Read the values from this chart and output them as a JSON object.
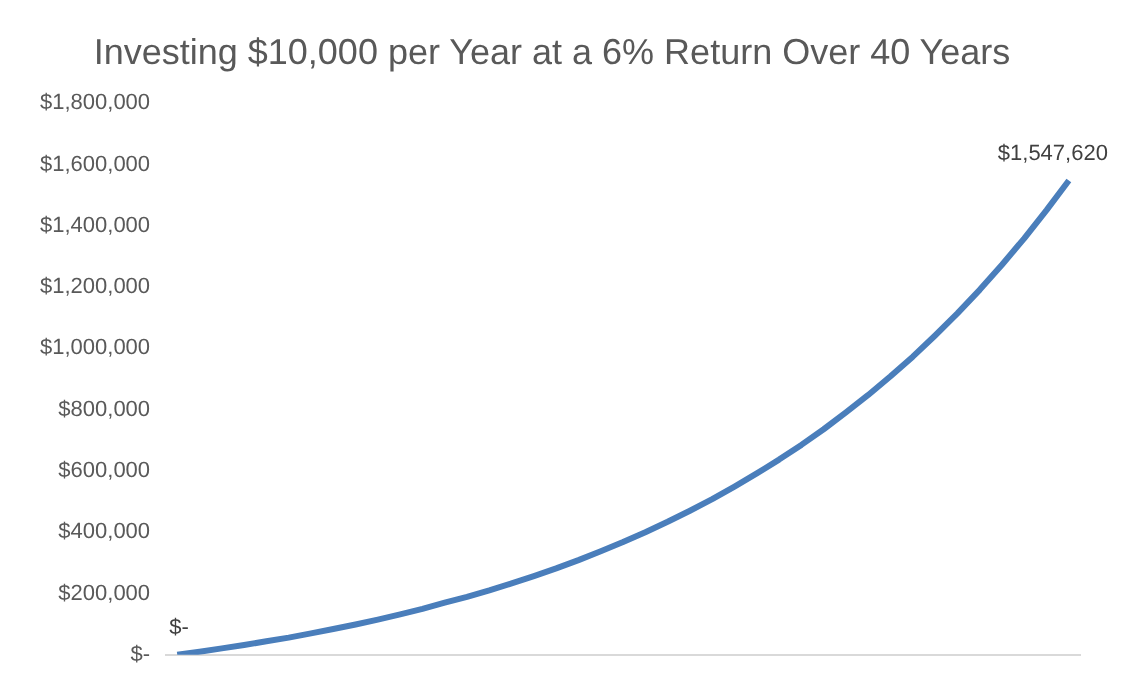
{
  "chart_data": {
    "type": "line",
    "title": "Investing $10,000 per Year at a 6% Return Over 40 Years",
    "categories": [
      null,
      null,
      null,
      null,
      null,
      null,
      null,
      null,
      null,
      null,
      null,
      null,
      null,
      null,
      null,
      null,
      null,
      null,
      null,
      null,
      null,
      null,
      null,
      null,
      null,
      null,
      null,
      null,
      null,
      null,
      null,
      null,
      null,
      null,
      null,
      null,
      null,
      null,
      null,
      null,
      null
    ],
    "series": [
      {
        "color": "#4a7ebb",
        "values": [
          0,
          10000,
          21000,
          32000,
          44000,
          56000,
          70000,
          84000,
          99000,
          115000,
          132000,
          150000,
          170000,
          189000,
          210000,
          233000,
          257000,
          282000,
          309000,
          338000,
          368000,
          400000,
          434000,
          470000,
          508000,
          549000,
          592000,
          637000,
          685000,
          736000,
          791000,
          848000,
          909000,
          973000,
          1042000,
          1114000,
          1191000,
          1273000,
          1359000,
          1451000,
          1547620
        ],
        "value_labels": [
          "$-",
          null,
          null,
          null,
          null,
          null,
          null,
          null,
          null,
          null,
          null,
          null,
          null,
          null,
          null,
          null,
          null,
          null,
          null,
          null,
          null,
          null,
          null,
          null,
          null,
          null,
          null,
          null,
          null,
          null,
          null,
          null,
          null,
          null,
          null,
          null,
          null,
          null,
          null,
          null,
          "$1,547,620"
        ]
      }
    ],
    "ylim": [
      0,
      1800000
    ],
    "yticks": [
      {
        "value": 0,
        "label": "$-"
      },
      {
        "value": 200000,
        "label": "$200,000"
      },
      {
        "value": 400000,
        "label": "$400,000"
      },
      {
        "value": 600000,
        "label": "$600,000"
      },
      {
        "value": 800000,
        "label": "$800,000"
      },
      {
        "value": 1000000,
        "label": "$1,000,000"
      },
      {
        "value": 1200000,
        "label": "$1,200,000"
      },
      {
        "value": 1400000,
        "label": "$1,400,000"
      },
      {
        "value": 1600000,
        "label": "$1,600,000"
      },
      {
        "value": 1800000,
        "label": "$1,800,000"
      }
    ],
    "grid": false,
    "legend": false,
    "marker": "none",
    "line_style": "solid"
  }
}
